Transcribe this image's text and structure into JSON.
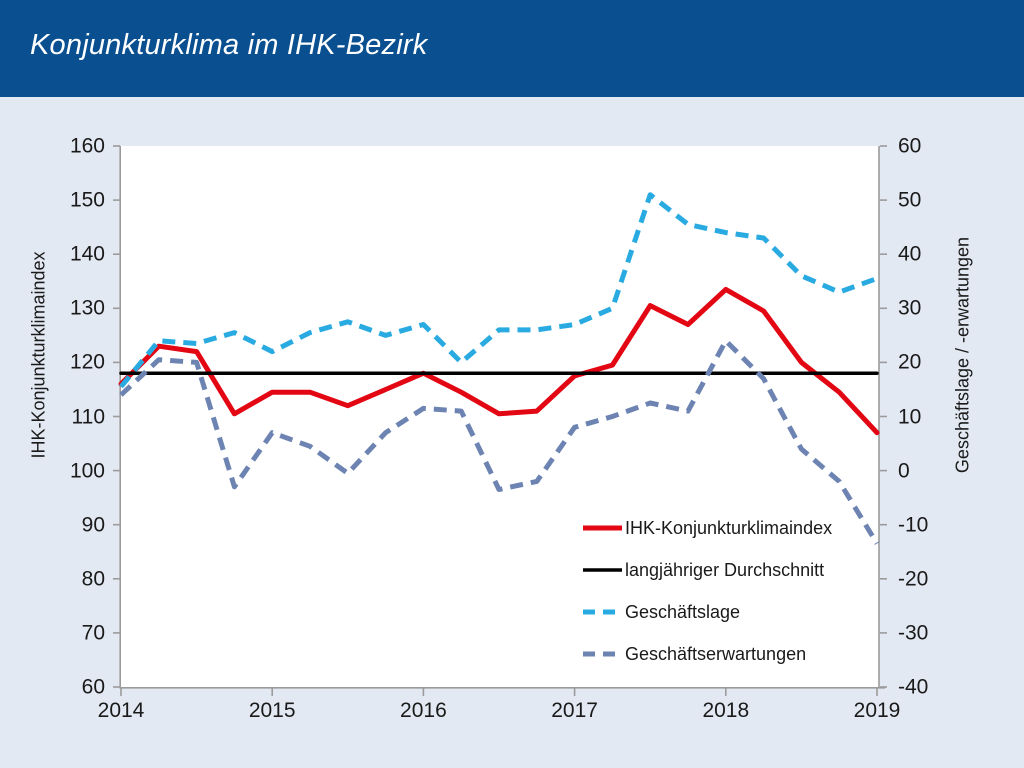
{
  "header": {
    "title": "Konjunkturklima im IHK-Bezirk"
  },
  "chart_data": {
    "type": "line",
    "title": "Konjunkturklima im IHK-Bezirk",
    "grid": false,
    "legend_position": "inside-bottom-right",
    "x_range": [
      2014,
      2019
    ],
    "x_ticks": [
      "2014",
      "2015",
      "2016",
      "2017",
      "2018",
      "2019"
    ],
    "left_axis": {
      "title": "IHK-Konjunkturklimaindex",
      "range": [
        60,
        160
      ],
      "ticks": [
        160,
        150,
        140,
        130,
        120,
        110,
        100,
        90,
        80,
        70,
        60
      ]
    },
    "right_axis": {
      "title": "Geschäftslage / -erwartungen",
      "range": [
        -40,
        60
      ],
      "ticks": [
        60,
        50,
        40,
        30,
        20,
        10,
        0,
        -10,
        -20,
        -30,
        -40
      ]
    },
    "x": [
      2014.0,
      2014.25,
      2014.5,
      2014.75,
      2015.0,
      2015.25,
      2015.5,
      2015.75,
      2016.0,
      2016.25,
      2016.5,
      2016.75,
      2017.0,
      2017.25,
      2017.5,
      2017.75,
      2018.0,
      2018.25,
      2018.5,
      2018.75,
      2019.0
    ],
    "series": [
      {
        "name": "IHK-Konjunkturklimaindex",
        "axis": "left",
        "color": "#e30613",
        "style": "solid",
        "values": [
          116,
          123,
          122,
          110.5,
          114.5,
          114.5,
          112,
          115,
          118,
          114.5,
          110.5,
          111,
          117.5,
          119.5,
          130.5,
          127,
          133.5,
          129.5,
          120,
          114.5,
          107
        ]
      },
      {
        "name": "langjähriger Durchschnitt",
        "axis": "left",
        "color": "#000000",
        "style": "solid",
        "values": [
          118,
          118,
          118,
          118,
          118,
          118,
          118,
          118,
          118,
          118,
          118,
          118,
          118,
          118,
          118,
          118,
          118,
          118,
          118,
          118,
          118
        ]
      },
      {
        "name": "Geschäftslage",
        "axis": "right",
        "color": "#29abe2",
        "style": "dashed",
        "values": [
          15.5,
          24,
          23.5,
          25.5,
          22,
          25.5,
          27.5,
          25,
          27,
          20,
          26,
          26,
          27,
          30,
          51,
          45.5,
          44,
          43,
          36,
          33,
          35.5
        ]
      },
      {
        "name": "Geschäftserwartungen",
        "axis": "right",
        "color": "#6d84b3",
        "style": "dashed",
        "values": [
          14,
          20.5,
          20,
          -3,
          7,
          4.5,
          -0.5,
          7,
          11.5,
          11,
          -3.5,
          -2,
          8,
          10,
          12.5,
          11,
          24,
          17,
          4,
          -2,
          -13.5
        ]
      }
    ],
    "colors": {
      "header_bg": "#0a4f90",
      "page_bg": "#e3e9f3",
      "plot_bg": "#ffffff",
      "axis": "#9b9b9b",
      "text": "#1a1a1a"
    }
  }
}
